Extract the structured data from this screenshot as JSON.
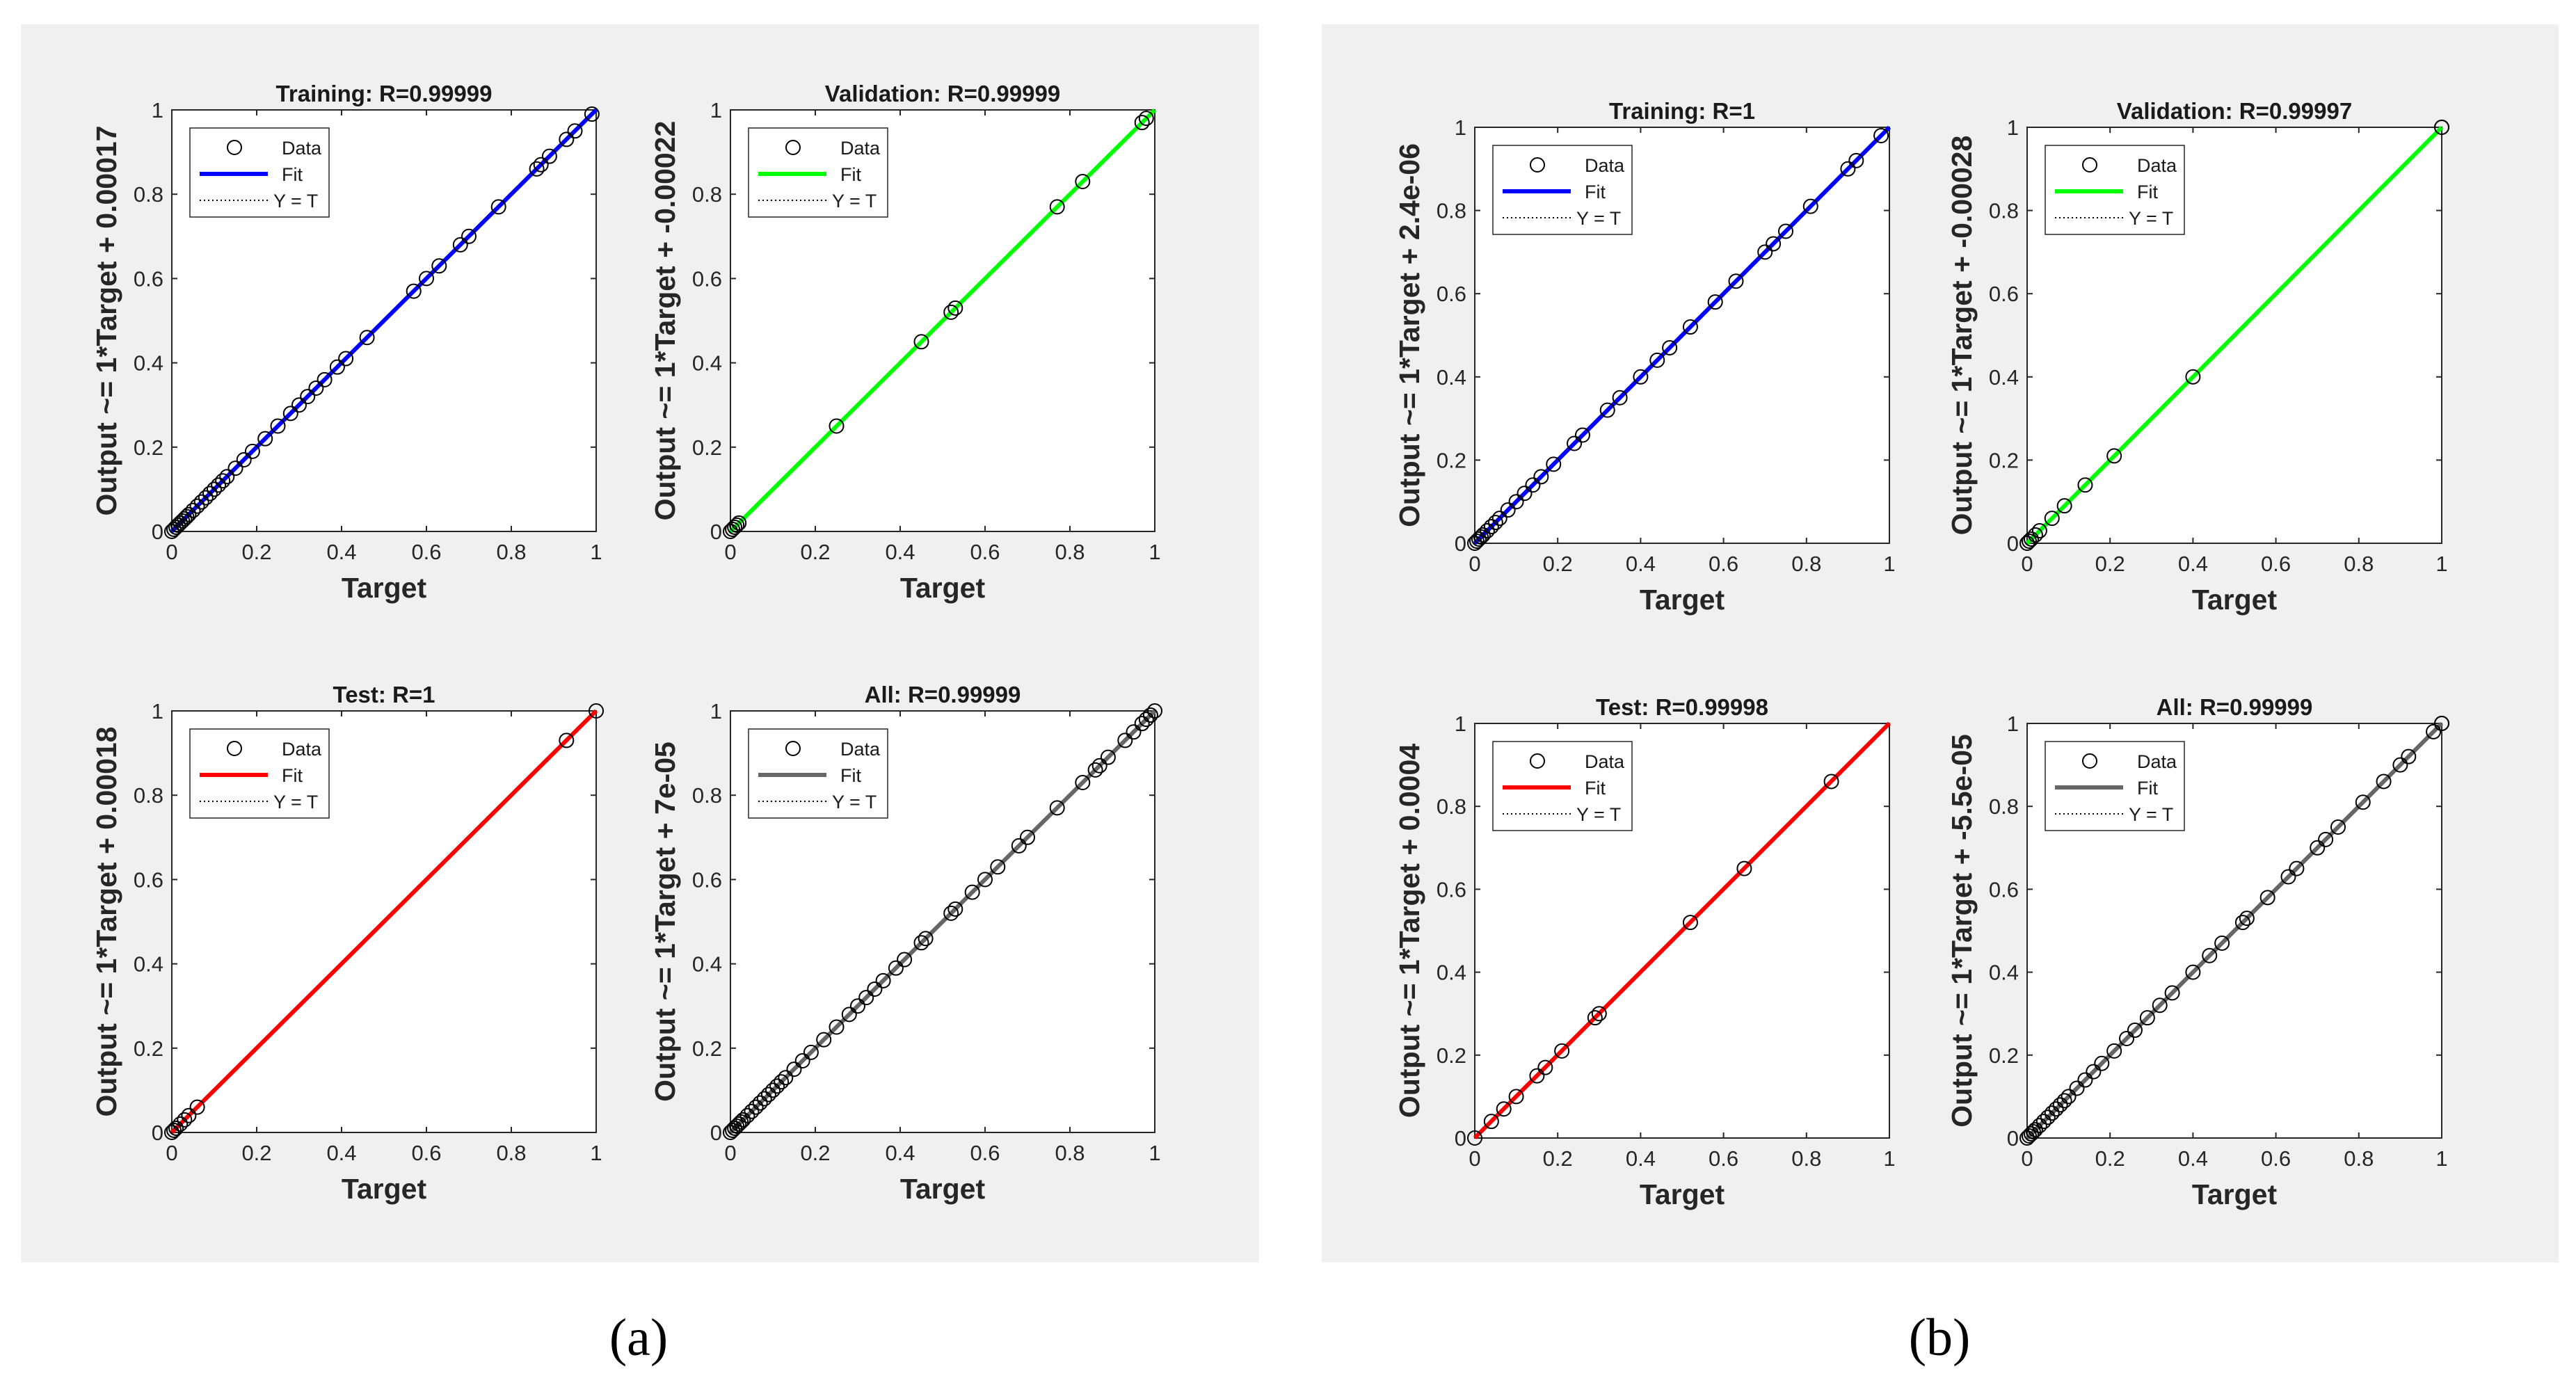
{
  "panels": [
    {
      "caption": "(a)",
      "subplots": [
        {
          "title": "Training: R=0.99999",
          "ylabel": "Output ~= 1*Target + 0.00017",
          "fit_color": "#0000ff"
        },
        {
          "title": "Validation: R=0.99999",
          "ylabel": "Output ~= 1*Target + -0.00022",
          "fit_color": "#00ff00"
        },
        {
          "title": "Test: R=1",
          "ylabel": "Output ~= 1*Target + 0.00018",
          "fit_color": "#ff0000"
        },
        {
          "title": "All: R=0.99999",
          "ylabel": "Output ~= 1*Target + 7e-05",
          "fit_color": "#666666"
        }
      ]
    },
    {
      "caption": "(b)",
      "subplots": [
        {
          "title": "Training: R=1",
          "ylabel": "Output ~= 1*Target + 2.4e-06",
          "fit_color": "#0000ff"
        },
        {
          "title": "Validation: R=0.99997",
          "ylabel": "Output ~= 1*Target + -0.00028",
          "fit_color": "#00ff00"
        },
        {
          "title": "Test: R=0.99998",
          "ylabel": "Output ~= 1*Target + 0.0004",
          "fit_color": "#ff0000"
        },
        {
          "title": "All: R=0.99999",
          "ylabel": "Output ~= 1*Target + -5.5e-05",
          "fit_color": "#666666"
        }
      ]
    }
  ],
  "legend": {
    "data": "Data",
    "fit": "Fit",
    "yt": "Y = T"
  },
  "chart_data": [
    {
      "type": "scatter",
      "panel": "a",
      "title": "Training: R=0.99999",
      "xlabel": "Target",
      "ylabel": "Output ~= 1*Target + 0.00017",
      "xlim": [
        0,
        1
      ],
      "ylim": [
        0,
        1
      ],
      "xticks": [
        "0",
        "0.2",
        "0.4",
        "0.6",
        "0.8",
        "1"
      ],
      "yticks": [
        "0",
        "0.2",
        "0.4",
        "0.6",
        "0.8",
        "1"
      ],
      "fit": {
        "slope": 1,
        "intercept": 0.00017,
        "color": "#0000ff"
      },
      "points": [
        0,
        0.005,
        0.01,
        0.015,
        0.02,
        0.025,
        0.03,
        0.035,
        0.04,
        0.05,
        0.06,
        0.07,
        0.08,
        0.09,
        0.1,
        0.11,
        0.12,
        0.13,
        0.15,
        0.17,
        0.19,
        0.22,
        0.25,
        0.28,
        0.3,
        0.32,
        0.34,
        0.36,
        0.39,
        0.41,
        0.46,
        0.57,
        0.6,
        0.63,
        0.68,
        0.7,
        0.77,
        0.86,
        0.87,
        0.89,
        0.93,
        0.95,
        0.99
      ]
    },
    {
      "type": "scatter",
      "panel": "a",
      "title": "Validation: R=0.99999",
      "xlabel": "Target",
      "ylabel": "Output ~= 1*Target + -0.00022",
      "xlim": [
        0,
        1
      ],
      "ylim": [
        0,
        1
      ],
      "xticks": [
        "0",
        "0.2",
        "0.4",
        "0.6",
        "0.8",
        "1"
      ],
      "yticks": [
        "0",
        "0.2",
        "0.4",
        "0.6",
        "0.8",
        "1"
      ],
      "fit": {
        "slope": 1,
        "intercept": -0.00022,
        "color": "#00ff00"
      },
      "points": [
        0,
        0.005,
        0.01,
        0.015,
        0.02,
        0.25,
        0.45,
        0.52,
        0.53,
        0.77,
        0.83,
        0.97,
        0.98
      ]
    },
    {
      "type": "scatter",
      "panel": "a",
      "title": "Test: R=1",
      "xlabel": "Target",
      "ylabel": "Output ~= 1*Target + 0.00018",
      "xlim": [
        0,
        1
      ],
      "ylim": [
        0,
        1
      ],
      "xticks": [
        "0",
        "0.2",
        "0.4",
        "0.6",
        "0.8",
        "1"
      ],
      "yticks": [
        "0",
        "0.2",
        "0.4",
        "0.6",
        "0.8",
        "1"
      ],
      "fit": {
        "slope": 1,
        "intercept": 0.00018,
        "color": "#ff0000"
      },
      "points": [
        0,
        0.005,
        0.01,
        0.02,
        0.03,
        0.04,
        0.06,
        0.93,
        1.0
      ]
    },
    {
      "type": "scatter",
      "panel": "a",
      "title": "All: R=0.99999",
      "xlabel": "Target",
      "ylabel": "Output ~= 1*Target + 7e-05",
      "xlim": [
        0,
        1
      ],
      "ylim": [
        0,
        1
      ],
      "xticks": [
        "0",
        "0.2",
        "0.4",
        "0.6",
        "0.8",
        "1"
      ],
      "yticks": [
        "0",
        "0.2",
        "0.4",
        "0.6",
        "0.8",
        "1"
      ],
      "fit": {
        "slope": 1,
        "intercept": 7e-05,
        "color": "#666666"
      },
      "points": [
        0,
        0.005,
        0.01,
        0.015,
        0.02,
        0.025,
        0.03,
        0.04,
        0.05,
        0.06,
        0.07,
        0.08,
        0.09,
        0.1,
        0.11,
        0.12,
        0.13,
        0.15,
        0.17,
        0.19,
        0.22,
        0.25,
        0.28,
        0.3,
        0.32,
        0.34,
        0.36,
        0.39,
        0.41,
        0.45,
        0.46,
        0.52,
        0.53,
        0.57,
        0.6,
        0.63,
        0.68,
        0.7,
        0.77,
        0.83,
        0.86,
        0.87,
        0.89,
        0.93,
        0.95,
        0.97,
        0.98,
        0.99,
        1.0
      ]
    },
    {
      "type": "scatter",
      "panel": "b",
      "title": "Training: R=1",
      "xlabel": "Target",
      "ylabel": "Output ~= 1*Target + 2.4e-06",
      "xlim": [
        0,
        1
      ],
      "ylim": [
        0,
        1
      ],
      "xticks": [
        "0",
        "0.2",
        "0.4",
        "0.6",
        "0.8",
        "1"
      ],
      "yticks": [
        "0",
        "0.2",
        "0.4",
        "0.6",
        "0.8",
        "1"
      ],
      "fit": {
        "slope": 1,
        "intercept": 2.4e-06,
        "color": "#0000ff"
      },
      "points": [
        0,
        0.005,
        0.01,
        0.015,
        0.02,
        0.03,
        0.04,
        0.05,
        0.06,
        0.08,
        0.1,
        0.12,
        0.14,
        0.16,
        0.19,
        0.24,
        0.26,
        0.32,
        0.35,
        0.4,
        0.44,
        0.47,
        0.52,
        0.58,
        0.63,
        0.7,
        0.72,
        0.75,
        0.81,
        0.9,
        0.92,
        0.98
      ]
    },
    {
      "type": "scatter",
      "panel": "b",
      "title": "Validation: R=0.99997",
      "xlabel": "Target",
      "ylabel": "Output ~= 1*Target + -0.00028",
      "xlim": [
        0,
        1
      ],
      "ylim": [
        0,
        1
      ],
      "xticks": [
        "0",
        "0.2",
        "0.4",
        "0.6",
        "0.8",
        "1"
      ],
      "yticks": [
        "0",
        "0.2",
        "0.4",
        "0.6",
        "0.8",
        "1"
      ],
      "fit": {
        "slope": 1,
        "intercept": -0.00028,
        "color": "#00ff00"
      },
      "points": [
        0,
        0.005,
        0.01,
        0.02,
        0.03,
        0.06,
        0.09,
        0.14,
        0.21,
        0.4,
        1.0,
        1.01
      ]
    },
    {
      "type": "scatter",
      "panel": "b",
      "title": "Test: R=0.99998",
      "xlabel": "Target",
      "ylabel": "Output ~= 1*Target + 0.0004",
      "xlim": [
        0,
        1
      ],
      "ylim": [
        0,
        1
      ],
      "xticks": [
        "0",
        "0.2",
        "0.4",
        "0.6",
        "0.8",
        "1"
      ],
      "yticks": [
        "0",
        "0.2",
        "0.4",
        "0.6",
        "0.8",
        "1"
      ],
      "fit": {
        "slope": 1,
        "intercept": 0.0004,
        "color": "#ff0000"
      },
      "points": [
        0,
        0.04,
        0.07,
        0.1,
        0.15,
        0.17,
        0.21,
        0.29,
        0.3,
        0.52,
        0.65,
        0.86
      ]
    },
    {
      "type": "scatter",
      "panel": "b",
      "title": "All: R=0.99999",
      "xlabel": "Target",
      "ylabel": "Output ~= 1*Target + -5.5e-05",
      "xlim": [
        0,
        1
      ],
      "ylim": [
        0,
        1
      ],
      "xticks": [
        "0",
        "0.2",
        "0.4",
        "0.6",
        "0.8",
        "1"
      ],
      "yticks": [
        "0",
        "0.2",
        "0.4",
        "0.6",
        "0.8",
        "1"
      ],
      "fit": {
        "slope": 1,
        "intercept": -5.5e-05,
        "color": "#666666"
      },
      "points": [
        0,
        0.005,
        0.01,
        0.015,
        0.02,
        0.03,
        0.04,
        0.05,
        0.06,
        0.07,
        0.08,
        0.09,
        0.1,
        0.12,
        0.14,
        0.16,
        0.18,
        0.21,
        0.24,
        0.26,
        0.29,
        0.32,
        0.35,
        0.4,
        0.44,
        0.47,
        0.52,
        0.53,
        0.58,
        0.63,
        0.65,
        0.7,
        0.72,
        0.75,
        0.81,
        0.86,
        0.9,
        0.92,
        0.98,
        1.0,
        1.01
      ]
    }
  ]
}
